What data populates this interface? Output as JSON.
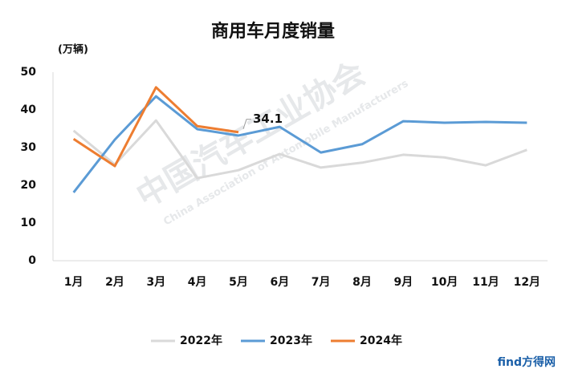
{
  "chart_data": {
    "type": "line",
    "title": "商用车月度销量",
    "y_label": "(万辆)",
    "categories": [
      "1月",
      "2月",
      "3月",
      "4月",
      "5月",
      "6月",
      "7月",
      "8月",
      "9月",
      "10月",
      "11月",
      "12月"
    ],
    "series": [
      {
        "name": "2022年",
        "color": "#d9d9d9",
        "values": [
          34.5,
          25.5,
          37.2,
          21.9,
          24.0,
          28.3,
          24.7,
          26.0,
          28.1,
          27.4,
          25.3,
          29.4
        ]
      },
      {
        "name": "2023年",
        "color": "#5b9bd5",
        "values": [
          18.1,
          32.1,
          43.6,
          34.9,
          33.2,
          35.5,
          28.7,
          30.9,
          37.0,
          36.6,
          36.8,
          36.6
        ]
      },
      {
        "name": "2024年",
        "color": "#ed7d31",
        "values": [
          32.3,
          25.1,
          46.0,
          35.7,
          34.1,
          null,
          null,
          null,
          null,
          null,
          null,
          null
        ]
      }
    ],
    "ylim": [
      0,
      50
    ],
    "yticks": [
      0,
      10,
      20,
      30,
      40,
      50
    ],
    "grid": false,
    "legend": "bottom",
    "watermark": "中国汽车工业协会",
    "watermark_en": "China Association of Automobile Manufacturers",
    "source": "find方得网"
  }
}
